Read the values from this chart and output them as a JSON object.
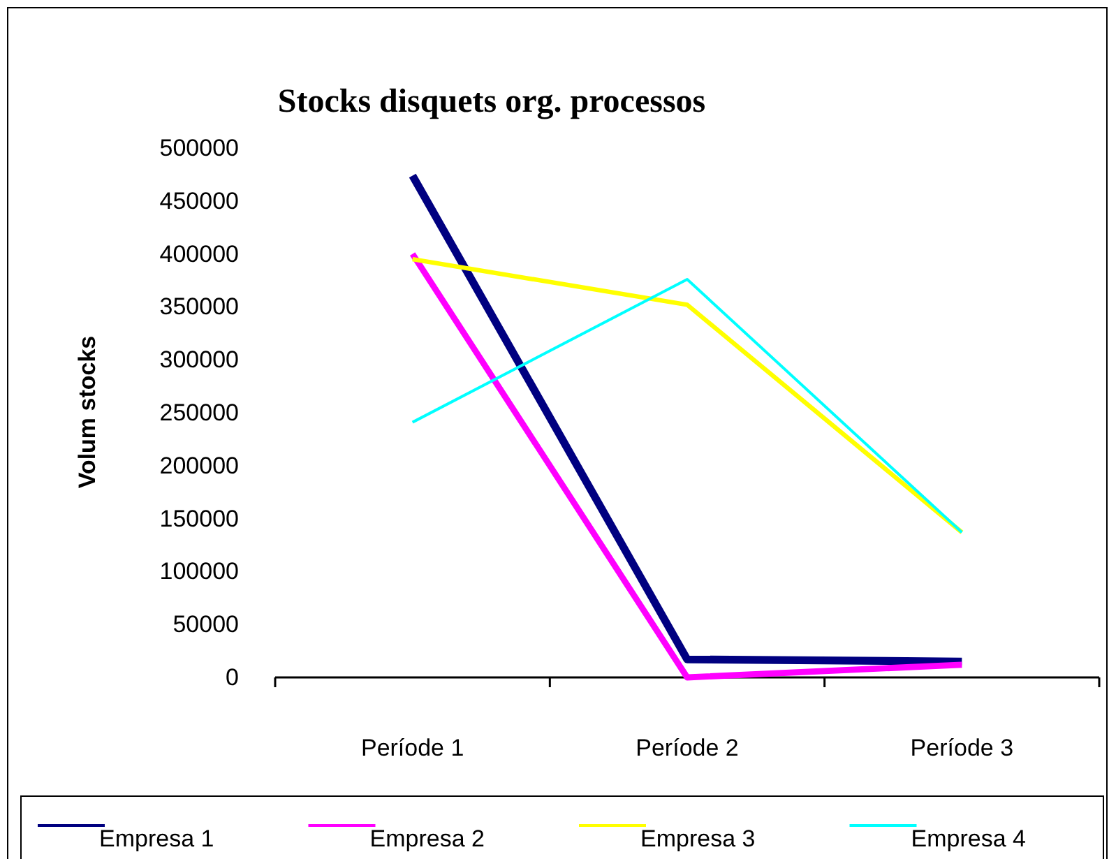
{
  "chart_data": {
    "type": "line",
    "title": "Stocks disquets org. processos",
    "ylabel": "Volum stocks",
    "categories": [
      "Període 1",
      "Període 2",
      "Període 3"
    ],
    "series": [
      {
        "name": "Empresa 1",
        "color": "#000080",
        "values": [
          474000,
          17000,
          15000
        ]
      },
      {
        "name": "Empresa 2",
        "color": "#ff00ff",
        "values": [
          400000,
          0,
          12000
        ]
      },
      {
        "name": "Empresa 3",
        "color": "#ffff00",
        "values": [
          395000,
          352000,
          137000
        ]
      },
      {
        "name": "Empresa 4",
        "color": "#00ffff",
        "values": [
          241000,
          376000,
          137000
        ]
      }
    ],
    "ylim": [
      0,
      500000
    ],
    "yticks": [
      0,
      50000,
      100000,
      150000,
      200000,
      250000,
      300000,
      350000,
      400000,
      450000,
      500000
    ],
    "grid": false,
    "legend": "bottom",
    "marker": "none",
    "line_style": "solid"
  }
}
